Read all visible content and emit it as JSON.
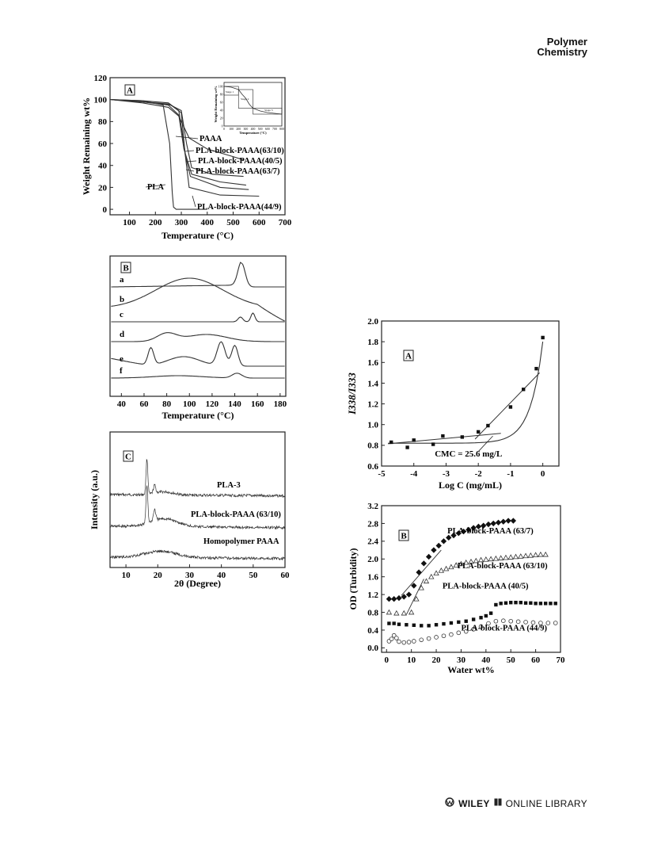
{
  "header": {
    "journal_line1": "Polymer",
    "journal_line2": "Chemistry"
  },
  "footer": {
    "publisher": "WILEY",
    "library": "ONLINE LIBRARY"
  },
  "chart_data": [
    {
      "panel": "A",
      "type": "line",
      "xlabel": "Temperature (°C)",
      "ylabel": "Weight Remaining wt%",
      "xlim": [
        25,
        700
      ],
      "ylim": [
        -5,
        120
      ],
      "xticks": [
        "100",
        "200",
        "300",
        "400",
        "500",
        "600",
        "700"
      ],
      "yticks": [
        "0",
        "20",
        "40",
        "60",
        "80",
        "100",
        "120"
      ],
      "series": [
        {
          "name": "PLA",
          "x": [
            30,
            150,
            230,
            255,
            265,
            270,
            280,
            400
          ],
          "y": [
            100,
            99,
            95,
            60,
            15,
            2,
            0,
            0
          ]
        },
        {
          "name": "PAAA",
          "x": [
            30,
            150,
            250,
            290,
            330,
            400,
            500,
            540
          ],
          "y": [
            100,
            97,
            93,
            85,
            65,
            55,
            48,
            45
          ]
        },
        {
          "name": "PLA-block-PAAA(63/10)",
          "x": [
            30,
            150,
            250,
            290,
            310,
            340,
            450,
            550
          ],
          "y": [
            100,
            98,
            95,
            86,
            55,
            32,
            25,
            22
          ]
        },
        {
          "name": "PLA-block-PAAA(40/5)",
          "x": [
            30,
            150,
            250,
            300,
            320,
            340,
            420,
            540
          ],
          "y": [
            100,
            98,
            96,
            90,
            60,
            38,
            32,
            30
          ]
        },
        {
          "name": "PLA-block-PAAA(63/7)",
          "x": [
            30,
            150,
            260,
            300,
            315,
            335,
            450,
            560
          ],
          "y": [
            100,
            98,
            95,
            88,
            50,
            30,
            20,
            18
          ]
        },
        {
          "name": "PLA-block-PAAA(44/9)",
          "x": [
            30,
            150,
            250,
            290,
            310,
            330,
            450,
            600
          ],
          "y": [
            100,
            99,
            97,
            90,
            60,
            20,
            13,
            12
          ]
        }
      ],
      "labels": [
        "PAAA",
        "PLA-block-PAAA(63/10)",
        "PLA-block-PAAA(40/5)",
        "PLA-block-PAAA(63/7)",
        "PLA",
        "PLA-block-PAAA(44/9)"
      ],
      "inset": {
        "xlabel": "Temperature (°C)",
        "ylabel": "Weight Remaining wt%",
        "stages": [
          "Stage 1",
          "Stage 2",
          "Stage 3"
        ],
        "xticks": [
          "0",
          "100",
          "200",
          "300",
          "400",
          "500",
          "600",
          "700",
          "800"
        ],
        "yticks": [
          "0",
          "20",
          "40",
          "60",
          "80",
          "100"
        ],
        "x": [
          0,
          100,
          200,
          250,
          300,
          350,
          400,
          500,
          600,
          700,
          800
        ],
        "y": [
          100,
          98,
          92,
          80,
          70,
          55,
          45,
          38,
          34,
          32,
          30
        ]
      }
    },
    {
      "panel": "B",
      "type": "line",
      "xlabel": "Temperature (°C)",
      "xlim": [
        30,
        185
      ],
      "xticks": [
        "40",
        "60",
        "80",
        "100",
        "120",
        "140",
        "160",
        "180"
      ],
      "curves": [
        "a",
        "b",
        "c",
        "d",
        "e",
        "f"
      ]
    },
    {
      "panel": "C",
      "type": "line",
      "xlabel": "2θ (Degree)",
      "ylabel": "Intensity (a.u.)",
      "xlim": [
        5,
        60
      ],
      "xticks": [
        "10",
        "20",
        "30",
        "40",
        "50",
        "60"
      ],
      "series": [
        {
          "name": "PLA-3"
        },
        {
          "name": "PLA-block-PAAA (63/10)"
        },
        {
          "name": "Homopolymer PAAA"
        }
      ]
    },
    {
      "panel": "A",
      "type": "scatter",
      "xlabel": "Log C (mg/mL)",
      "ylabel": "I338/I333",
      "xlim": [
        -5,
        0.5
      ],
      "ylim": [
        0.6,
        2.0
      ],
      "xticks": [
        "-5",
        "-4",
        "-3",
        "-2",
        "-1",
        "0"
      ],
      "yticks": [
        "0.6",
        "0.8",
        "1.0",
        "1.2",
        "1.4",
        "1.6",
        "1.8",
        "2.0"
      ],
      "x": [
        -4.7,
        -4.2,
        -4.0,
        -3.4,
        -3.1,
        -2.5,
        -2.0,
        -1.7,
        -1.0,
        -0.6,
        -0.2,
        0.0
      ],
      "y": [
        0.83,
        0.78,
        0.85,
        0.81,
        0.89,
        0.88,
        0.93,
        0.99,
        1.17,
        1.34,
        1.54,
        1.84
      ],
      "annotation": "CMC = 25.6 mg/L"
    },
    {
      "panel": "B",
      "type": "scatter",
      "xlabel": "Water wt%",
      "ylabel": "OD (Turbidity)",
      "xlim": [
        -2,
        70
      ],
      "ylim": [
        -0.1,
        3.2
      ],
      "xticks": [
        "0",
        "10",
        "20",
        "30",
        "40",
        "50",
        "60",
        "70"
      ],
      "yticks": [
        "0.0",
        "0.4",
        "0.8",
        "1.2",
        "1.6",
        "2.0",
        "2.4",
        "2.8",
        "3.2"
      ],
      "series": [
        {
          "name": "PLA-block-PAAA (63/7)",
          "x": [
            1,
            3,
            5,
            7,
            9,
            11,
            13,
            15,
            17,
            19,
            21,
            23,
            25,
            27,
            29,
            31,
            33,
            35,
            37,
            39,
            41,
            43,
            45,
            47,
            49,
            51
          ],
          "y": [
            1.1,
            1.1,
            1.12,
            1.15,
            1.2,
            1.4,
            1.7,
            1.9,
            2.05,
            2.2,
            2.3,
            2.4,
            2.48,
            2.53,
            2.58,
            2.62,
            2.66,
            2.7,
            2.73,
            2.75,
            2.78,
            2.8,
            2.82,
            2.84,
            2.86,
            2.86
          ]
        },
        {
          "name": "PLA-block-PAAA (63/10)",
          "x": [
            1,
            4,
            7,
            10,
            12,
            14,
            16,
            18,
            20,
            22,
            24,
            26,
            28,
            30,
            32,
            34,
            36,
            38,
            40,
            42,
            44,
            46,
            48,
            50,
            52,
            54,
            56,
            58,
            60,
            62,
            64
          ],
          "y": [
            0.8,
            0.78,
            0.78,
            0.8,
            1.1,
            1.35,
            1.5,
            1.6,
            1.68,
            1.74,
            1.78,
            1.82,
            1.86,
            1.89,
            1.92,
            1.94,
            1.96,
            1.98,
            1.99,
            2.0,
            2.01,
            2.02,
            2.03,
            2.04,
            2.05,
            2.06,
            2.07,
            2.08,
            2.09,
            2.1,
            2.1
          ]
        },
        {
          "name": "PLA-block-PAAA (40/5)",
          "x": [
            1,
            3,
            5,
            8,
            11,
            14,
            17,
            20,
            23,
            26,
            29,
            32,
            35,
            38,
            40,
            42,
            44,
            46,
            48,
            50,
            52,
            54,
            56,
            58,
            60,
            62,
            64,
            66,
            68
          ],
          "y": [
            0.55,
            0.55,
            0.53,
            0.52,
            0.51,
            0.5,
            0.5,
            0.52,
            0.54,
            0.56,
            0.58,
            0.6,
            0.64,
            0.68,
            0.72,
            0.78,
            0.97,
            1.0,
            1.01,
            1.02,
            1.02,
            1.02,
            1.01,
            1.01,
            1.0,
            1.0,
            1.0,
            1.0,
            1.0
          ]
        },
        {
          "name": "PLA-block-PAAA (44/9)",
          "x": [
            1,
            2,
            3,
            4,
            5,
            7,
            9,
            11,
            14,
            17,
            20,
            23,
            26,
            29,
            32,
            35,
            38,
            41,
            44,
            47,
            50,
            53,
            56,
            59,
            62,
            65,
            68
          ],
          "y": [
            0.15,
            0.2,
            0.28,
            0.22,
            0.14,
            0.12,
            0.13,
            0.15,
            0.18,
            0.21,
            0.24,
            0.27,
            0.3,
            0.34,
            0.37,
            0.42,
            0.48,
            0.55,
            0.6,
            0.61,
            0.6,
            0.59,
            0.58,
            0.57,
            0.56,
            0.56,
            0.56
          ]
        }
      ]
    }
  ]
}
